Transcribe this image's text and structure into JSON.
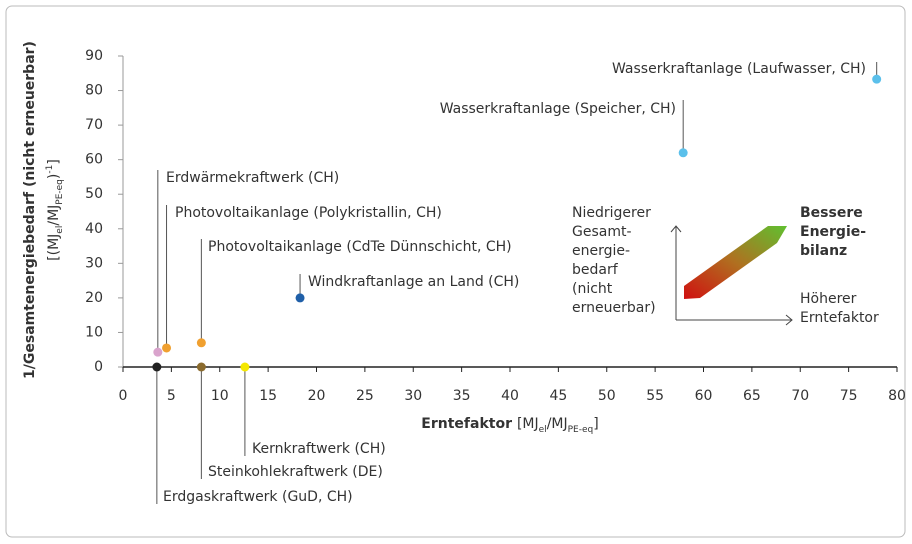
{
  "chart_data": {
    "type": "scatter",
    "y_label": {
      "line1": "1/Gesamtenergiebedarf (nicht erneuerbar)",
      "line2": [
        "[(MJ",
        "el",
        "/MJ",
        "PE-eq",
        ")",
        "-1",
        "]"
      ]
    },
    "x_label": {
      "bold": "Erntefaktor",
      "unit": [
        "[MJ",
        "el",
        "/MJ",
        "PE-eq",
        "]"
      ]
    },
    "xlim": [
      0,
      80
    ],
    "xticks": [
      0,
      5,
      10,
      15,
      20,
      25,
      30,
      35,
      40,
      45,
      50,
      55,
      60,
      65,
      70,
      75,
      80
    ],
    "ylim": [
      0,
      90
    ],
    "yticks": [
      0,
      10,
      20,
      30,
      40,
      50,
      60,
      70,
      80,
      90
    ],
    "points": [
      {
        "label": "Erdwärmekraftwerk (CH)",
        "x": 3.6,
        "y": 4.3,
        "color": "#d9a3cc"
      },
      {
        "label": "Photovoltaikanlage (Polykristallin, CH)",
        "x": 4.5,
        "y": 5.5,
        "color": "#f0a030"
      },
      {
        "label": "Photovoltaikanlage (CdTe Dünnschicht, CH)",
        "x": 8.1,
        "y": 7,
        "color": "#f0a030"
      },
      {
        "label": "Windkraftanlage an Land (CH)",
        "x": 18.3,
        "y": 20,
        "color": "#1f5fa8"
      },
      {
        "label": "Wasserkraftanlage (Speicher, CH)",
        "x": 57.9,
        "y": 62,
        "color": "#5bc0eb"
      },
      {
        "label": "Wasserkraftanlage (Laufwasser, CH)",
        "x": 77.9,
        "y": 83.3,
        "color": "#5bc0eb"
      },
      {
        "label": "Kernkraftwerk (CH)",
        "x": 12.6,
        "y": 0,
        "color": "#f5e800"
      },
      {
        "label": "Steinkohlekraftwerk (DE)",
        "x": 8.1,
        "y": 0,
        "color": "#8b6b2e"
      },
      {
        "label": "Erdgaskraftwerk (GuD, CH)",
        "x": 3.5,
        "y": 0,
        "color": "#222222"
      }
    ],
    "inset": {
      "y_text": [
        "Niedrigerer",
        "Gesamt-",
        "energie-",
        "bedarf",
        "(nicht",
        "erneuerbar)"
      ],
      "x_text": [
        "Höherer",
        "Erntefaktor"
      ],
      "result": [
        "Bessere",
        "Energie-",
        "bilanz"
      ]
    }
  }
}
